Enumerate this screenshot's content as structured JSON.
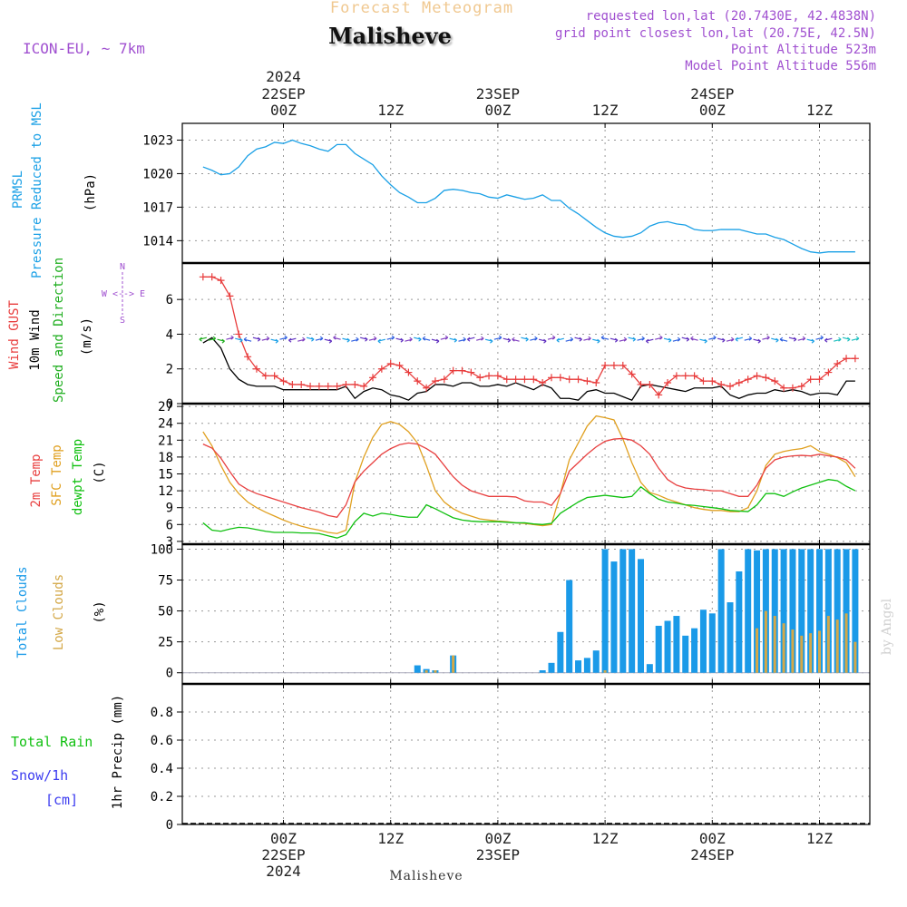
{
  "header": {
    "forecast_title": "Forecast Meteogram",
    "location": "Malisheve",
    "model": "ICON-EU, ~ 7km",
    "requested": "requested lon,lat (20.7430E, 42.4838N)",
    "grid_point": "grid point closest lon,lat (20.75E, 42.5N)",
    "point_altitude": "Point Altitude 523m",
    "model_altitude": "Model Point Altitude 556m",
    "footer_location": "Malisheve",
    "credit": "by Angel"
  },
  "time_axis": {
    "top_labels": [
      {
        "time": "00Z",
        "date": "22SEP",
        "year": "2024",
        "hour": 0
      },
      {
        "time": "12Z",
        "date": "",
        "year": "",
        "hour": 12
      },
      {
        "time": "00Z",
        "date": "23SEP",
        "year": "",
        "hour": 24
      },
      {
        "time": "12Z",
        "date": "",
        "year": "",
        "hour": 36
      },
      {
        "time": "00Z",
        "date": "24SEP",
        "year": "",
        "hour": 48
      },
      {
        "time": "12Z",
        "date": "",
        "year": "",
        "hour": 60
      }
    ],
    "bottom_labels": [
      {
        "time": "00Z",
        "date": "22SEP",
        "year": "2024",
        "hour": 0
      },
      {
        "time": "12Z",
        "date": "",
        "year": "",
        "hour": 12
      },
      {
        "time": "00Z",
        "date": "23SEP",
        "year": "",
        "hour": 24
      },
      {
        "time": "12Z",
        "date": "",
        "year": "",
        "hour": 36
      },
      {
        "time": "00Z",
        "date": "24SEP",
        "year": "",
        "hour": 48
      },
      {
        "time": "12Z",
        "date": "",
        "year": "",
        "hour": 60
      }
    ]
  },
  "panels": {
    "pressure": {
      "label1": "PRMSL",
      "label2": "Pressure Reduced to MSL",
      "unit": "(hPa)"
    },
    "wind": {
      "label1": "Wind GUST",
      "label2": "10m Wind",
      "label3": "Speed and Direction",
      "unit": "(m/s)",
      "compass_n": "N",
      "compass_s": "S",
      "compass_row": "W <--> E"
    },
    "temp": {
      "label1": "2m Temp",
      "label2": "SFC Temp",
      "label3": "dewpt Temp",
      "unit": "(C)"
    },
    "clouds": {
      "label1": "Total Clouds",
      "label2": "Low Clouds",
      "unit": "(%)"
    },
    "precip": {
      "label1": "Total  Rain",
      "label2": "Snow/1h",
      "label3": "[cm]",
      "unit": "1hr Precip (mm)"
    }
  },
  "colors": {
    "pressure": "#1aa0e6",
    "gust": "#e83c3c",
    "wind": "#000000",
    "wind_arrow_label": "#1fae1f",
    "temp2m": "#e84040",
    "sfc": "#e0a020",
    "dewpt": "#10c010",
    "total_clouds": "#1a9ae8",
    "low_clouds": "#d4a848",
    "rain": "#10c010",
    "snow": "#3c3cf0",
    "header_purple": "#a050d0",
    "title_orange": "#f0c070"
  },
  "chart_data": [
    {
      "type": "line",
      "title": "PRMSL",
      "ylabel": "(hPa)",
      "ylim": [
        1012,
        1024.5
      ],
      "yticks": [
        1014,
        1017,
        1020,
        1023
      ],
      "x_hours": [
        -9,
        -8,
        -7,
        -6,
        -5,
        -4,
        -3,
        -2,
        -1,
        0,
        1,
        2,
        3,
        4,
        5,
        6,
        7,
        8,
        9,
        10,
        11,
        12,
        13,
        14,
        15,
        16,
        17,
        18,
        19,
        20,
        21,
        22,
        23,
        24,
        25,
        26,
        27,
        28,
        29,
        30,
        31,
        32,
        33,
        34,
        35,
        36,
        37,
        38,
        39,
        40,
        41,
        42,
        43,
        44,
        45,
        46,
        47,
        48,
        49,
        50,
        51,
        52,
        53,
        54,
        55,
        56,
        57,
        58,
        59,
        60,
        61,
        62,
        63,
        64
      ],
      "series": [
        {
          "name": "PRMSL",
          "values": [
            1020.6,
            1020.3,
            1019.9,
            1020.0,
            1020.6,
            1021.6,
            1022.2,
            1022.4,
            1022.8,
            1022.7,
            1023.0,
            1022.7,
            1022.5,
            1022.2,
            1022.0,
            1022.6,
            1022.6,
            1021.8,
            1021.3,
            1020.8,
            1019.8,
            1019.0,
            1018.3,
            1017.9,
            1017.4,
            1017.4,
            1017.8,
            1018.5,
            1018.6,
            1018.5,
            1018.3,
            1018.2,
            1017.9,
            1017.8,
            1018.1,
            1017.9,
            1017.7,
            1017.8,
            1018.1,
            1017.6,
            1017.6,
            1016.9,
            1016.4,
            1015.8,
            1015.2,
            1014.7,
            1014.4,
            1014.3,
            1014.4,
            1014.7,
            1015.3,
            1015.6,
            1015.7,
            1015.5,
            1015.4,
            1015.0,
            1014.9,
            1014.9,
            1015.0,
            1015.0,
            1015.0,
            1014.8,
            1014.6,
            1014.6,
            1014.3,
            1014.1,
            1013.7,
            1013.3,
            1013.0,
            1012.9,
            1013.0,
            1013.0,
            1013.0,
            1013.0
          ]
        }
      ]
    },
    {
      "type": "line",
      "title": "Wind GUST / 10m Wind",
      "ylabel": "(m/s)",
      "ylim": [
        0,
        8.1
      ],
      "yticks": [
        0,
        2,
        4,
        6
      ],
      "x_hours": [
        -9,
        -8,
        -7,
        -6,
        -5,
        -4,
        -3,
        -2,
        -1,
        0,
        1,
        2,
        3,
        4,
        5,
        6,
        7,
        8,
        9,
        10,
        11,
        12,
        13,
        14,
        15,
        16,
        17,
        18,
        19,
        20,
        21,
        22,
        23,
        24,
        25,
        26,
        27,
        28,
        29,
        30,
        31,
        32,
        33,
        34,
        35,
        36,
        37,
        38,
        39,
        40,
        41,
        42,
        43,
        44,
        45,
        46,
        47,
        48,
        49,
        50,
        51,
        52,
        53,
        54,
        55,
        56,
        57,
        58,
        59,
        60,
        61,
        62,
        63,
        64
      ],
      "series": [
        {
          "name": "Wind GUST",
          "values": [
            7.3,
            7.3,
            7.1,
            6.2,
            4.0,
            2.7,
            2.0,
            1.6,
            1.6,
            1.3,
            1.1,
            1.1,
            1.0,
            1.0,
            1.0,
            1.0,
            1.1,
            1.1,
            1.0,
            1.5,
            2.0,
            2.3,
            2.2,
            1.8,
            1.3,
            0.9,
            1.3,
            1.4,
            1.9,
            1.9,
            1.8,
            1.5,
            1.6,
            1.6,
            1.4,
            1.4,
            1.4,
            1.4,
            1.2,
            1.5,
            1.5,
            1.4,
            1.4,
            1.3,
            1.2,
            2.2,
            2.2,
            2.2,
            1.7,
            1.1,
            1.1,
            0.5,
            1.2,
            1.6,
            1.6,
            1.6,
            1.3,
            1.3,
            1.1,
            1.0,
            1.2,
            1.4,
            1.6,
            1.5,
            1.3,
            0.9,
            0.9,
            1.0,
            1.4,
            1.4,
            1.8,
            2.3,
            2.6,
            2.6
          ]
        },
        {
          "name": "10m Wind",
          "values": [
            3.5,
            3.8,
            3.2,
            2.0,
            1.4,
            1.1,
            1.0,
            1.0,
            1.0,
            0.8,
            0.8,
            0.8,
            0.8,
            0.8,
            0.8,
            0.8,
            1.0,
            0.3,
            0.7,
            0.9,
            0.8,
            0.5,
            0.4,
            0.2,
            0.6,
            0.7,
            1.1,
            1.1,
            1.0,
            1.2,
            1.2,
            1.0,
            1.0,
            1.1,
            1.0,
            1.2,
            1.0,
            0.8,
            1.1,
            0.9,
            0.3,
            0.3,
            0.2,
            0.7,
            0.8,
            0.6,
            0.6,
            0.4,
            0.2,
            1.0,
            1.1,
            1.0,
            0.9,
            0.8,
            0.7,
            0.9,
            0.9,
            0.9,
            1.0,
            0.5,
            0.3,
            0.5,
            0.6,
            0.6,
            0.8,
            0.7,
            0.8,
            0.7,
            0.5,
            0.6,
            0.6,
            0.5,
            1.3,
            1.3
          ]
        }
      ]
    },
    {
      "type": "line",
      "title": "2m Temp / SFC Temp / dewpt Temp",
      "ylabel": "(C)",
      "ylim": [
        2.5,
        27.5
      ],
      "yticks": [
        3,
        6,
        9,
        12,
        15,
        18,
        21,
        24,
        27
      ],
      "x_hours": [
        -9,
        -8,
        -7,
        -6,
        -5,
        -4,
        -3,
        -2,
        -1,
        0,
        1,
        2,
        3,
        4,
        5,
        6,
        7,
        8,
        9,
        10,
        11,
        12,
        13,
        14,
        15,
        16,
        17,
        18,
        19,
        20,
        21,
        22,
        23,
        24,
        25,
        26,
        27,
        28,
        29,
        30,
        31,
        32,
        33,
        34,
        35,
        36,
        37,
        38,
        39,
        40,
        41,
        42,
        43,
        44,
        45,
        46,
        47,
        48,
        49,
        50,
        51,
        52,
        53,
        54,
        55,
        56,
        57,
        58,
        59,
        60,
        61,
        62,
        63,
        64
      ],
      "series": [
        {
          "name": "2m Temp",
          "values": [
            20.3,
            19.6,
            17.8,
            15.4,
            13.2,
            12.2,
            11.5,
            11.0,
            10.5,
            10.0,
            9.5,
            9.0,
            8.6,
            8.2,
            7.6,
            7.3,
            9.5,
            13.6,
            15.5,
            17.0,
            18.5,
            19.5,
            20.2,
            20.5,
            20.3,
            19.5,
            18.5,
            16.5,
            14.5,
            13.0,
            12.0,
            11.5,
            11.0,
            11.0,
            11.0,
            10.9,
            10.2,
            10.0,
            10.0,
            9.4,
            11.5,
            15.5,
            17.0,
            18.5,
            19.8,
            20.8,
            21.2,
            21.3,
            21.0,
            20.0,
            18.5,
            16.0,
            14.0,
            13.0,
            12.5,
            12.3,
            12.2,
            12.0,
            12.0,
            11.5,
            11.0,
            11.0,
            13.0,
            16.0,
            17.5,
            18.0,
            18.2,
            18.3,
            18.2,
            18.5,
            18.2,
            18.0,
            17.5,
            16.0
          ]
        },
        {
          "name": "SFC Temp",
          "values": [
            22.5,
            20.0,
            16.5,
            13.5,
            11.5,
            10.0,
            9.0,
            8.2,
            7.5,
            6.8,
            6.2,
            5.7,
            5.3,
            5.0,
            4.6,
            4.4,
            5.0,
            13.5,
            18.0,
            21.5,
            23.8,
            24.3,
            23.8,
            22.5,
            20.5,
            16.5,
            12.0,
            10.0,
            8.8,
            8.0,
            7.5,
            7.0,
            6.8,
            6.6,
            6.5,
            6.3,
            6.2,
            6.0,
            5.8,
            6.0,
            11.5,
            17.5,
            20.5,
            23.5,
            25.3,
            25.0,
            24.6,
            21.2,
            17.0,
            13.5,
            11.7,
            11.2,
            10.5,
            10.0,
            9.5,
            9.0,
            8.7,
            8.5,
            8.5,
            8.3,
            8.3,
            9.0,
            12.0,
            16.5,
            18.5,
            19.0,
            19.3,
            19.5,
            20.0,
            19.0,
            18.5,
            17.9,
            17.0,
            14.5
          ]
        },
        {
          "name": "dewpt Temp",
          "values": [
            6.3,
            5.0,
            4.8,
            5.2,
            5.5,
            5.4,
            5.1,
            4.8,
            4.6,
            4.6,
            4.6,
            4.5,
            4.5,
            4.4,
            4.0,
            3.6,
            4.2,
            6.5,
            8.0,
            7.5,
            8.0,
            7.8,
            7.5,
            7.3,
            7.3,
            9.5,
            8.8,
            8.0,
            7.2,
            6.8,
            6.6,
            6.5,
            6.5,
            6.5,
            6.4,
            6.3,
            6.3,
            6.1,
            6.0,
            6.2,
            8.0,
            9.0,
            10.0,
            10.8,
            11.0,
            11.2,
            11.0,
            10.8,
            11.0,
            12.7,
            11.5,
            10.5,
            10.0,
            9.8,
            9.5,
            9.4,
            9.2,
            9.0,
            8.8,
            8.5,
            8.4,
            8.3,
            9.5,
            11.5,
            11.5,
            11.0,
            11.8,
            12.5,
            13.0,
            13.5,
            14.0,
            13.8,
            12.8,
            12.0
          ]
        }
      ]
    },
    {
      "type": "bar",
      "title": "Total Clouds / Low Clouds",
      "ylabel": "(%)",
      "ylim": [
        -9,
        104
      ],
      "yticks": [
        0,
        25,
        50,
        75,
        100
      ],
      "x_hours": [
        13,
        14,
        15,
        16,
        17,
        18,
        19,
        20,
        21,
        22,
        23,
        24,
        25,
        26,
        27,
        28,
        29,
        30,
        31,
        32,
        33,
        34,
        35,
        36,
        37,
        38,
        39,
        40,
        41,
        42,
        43,
        44,
        45,
        46,
        47,
        48,
        49,
        50,
        51,
        52,
        53,
        54,
        55,
        56,
        57,
        58,
        59,
        60,
        61,
        62,
        63,
        64
      ],
      "series": [
        {
          "name": "Total Clouds",
          "values": [
            0,
            0,
            6,
            3,
            2,
            0,
            14,
            0,
            0,
            0,
            0,
            0,
            0,
            0,
            0,
            0,
            2,
            8,
            33,
            75,
            10,
            12,
            18,
            100,
            90,
            100,
            100,
            92,
            7,
            38,
            42,
            46,
            30,
            36,
            51,
            48,
            100,
            57,
            82,
            100,
            99,
            100,
            100,
            100,
            100,
            100,
            100,
            100,
            100,
            100,
            100,
            100
          ]
        },
        {
          "name": "Low Clouds",
          "values": [
            0,
            0,
            0,
            2,
            2,
            0,
            14,
            0,
            0,
            0,
            0,
            0,
            0,
            0,
            0,
            0,
            0,
            0,
            0,
            0,
            0,
            0,
            0,
            2,
            0,
            0,
            0,
            0,
            0,
            0,
            0,
            0,
            0,
            0,
            0,
            0,
            0,
            0,
            0,
            0,
            36,
            50,
            46,
            40,
            35,
            30,
            32,
            34,
            46,
            43,
            48,
            25
          ]
        }
      ]
    },
    {
      "type": "bar",
      "title": "1hr Precip",
      "ylabel": "1hr Precip (mm)",
      "ylim": [
        0,
        1.0
      ],
      "yticks": [
        0,
        0.2,
        0.4,
        0.6,
        0.8
      ],
      "series": [
        {
          "name": "Total Rain",
          "values": []
        },
        {
          "name": "Snow/1h",
          "values": []
        }
      ]
    }
  ]
}
